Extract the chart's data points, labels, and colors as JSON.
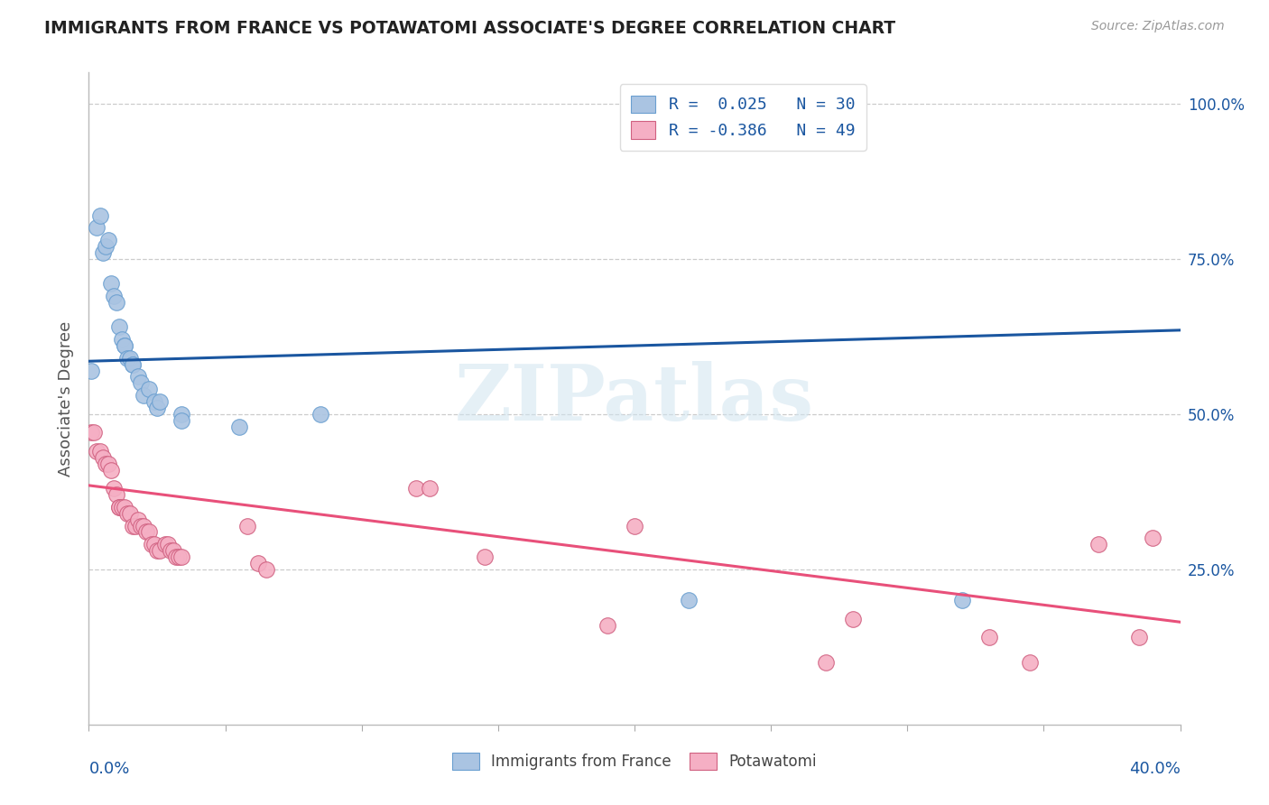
{
  "title": "IMMIGRANTS FROM FRANCE VS POTAWATOMI ASSOCIATE'S DEGREE CORRELATION CHART",
  "source": "Source: ZipAtlas.com",
  "ylabel": "Associate's Degree",
  "legend_label1": "Immigrants from France",
  "legend_label2": "Potawatomi",
  "r1": 0.025,
  "n1": 30,
  "r2": -0.386,
  "n2": 49,
  "blue_color": "#aac4e2",
  "pink_color": "#f5afc4",
  "blue_line_color": "#1a56a0",
  "pink_line_color": "#e8507a",
  "blue_edge_color": "#6a9fd0",
  "pink_edge_color": "#d06080",
  "scatter_blue": {
    "x": [
      0.001,
      0.003,
      0.004,
      0.005,
      0.006,
      0.007,
      0.008,
      0.009,
      0.01,
      0.011,
      0.012,
      0.013,
      0.013,
      0.014,
      0.015,
      0.016,
      0.016,
      0.018,
      0.019,
      0.02,
      0.022,
      0.024,
      0.025,
      0.026,
      0.034,
      0.034,
      0.055,
      0.085,
      0.22,
      0.32
    ],
    "y": [
      0.57,
      0.8,
      0.82,
      0.76,
      0.77,
      0.78,
      0.71,
      0.69,
      0.68,
      0.64,
      0.62,
      0.61,
      0.61,
      0.59,
      0.59,
      0.58,
      0.58,
      0.56,
      0.55,
      0.53,
      0.54,
      0.52,
      0.51,
      0.52,
      0.5,
      0.49,
      0.48,
      0.5,
      0.2,
      0.2
    ]
  },
  "scatter_pink": {
    "x": [
      0.001,
      0.002,
      0.003,
      0.004,
      0.005,
      0.006,
      0.007,
      0.008,
      0.009,
      0.01,
      0.011,
      0.011,
      0.012,
      0.013,
      0.014,
      0.015,
      0.016,
      0.017,
      0.018,
      0.019,
      0.02,
      0.021,
      0.022,
      0.023,
      0.024,
      0.025,
      0.026,
      0.028,
      0.029,
      0.03,
      0.031,
      0.032,
      0.033,
      0.034,
      0.058,
      0.062,
      0.065,
      0.12,
      0.125,
      0.145,
      0.19,
      0.2,
      0.27,
      0.28,
      0.33,
      0.345,
      0.37,
      0.385,
      0.39
    ],
    "y": [
      0.47,
      0.47,
      0.44,
      0.44,
      0.43,
      0.42,
      0.42,
      0.41,
      0.38,
      0.37,
      0.35,
      0.35,
      0.35,
      0.35,
      0.34,
      0.34,
      0.32,
      0.32,
      0.33,
      0.32,
      0.32,
      0.31,
      0.31,
      0.29,
      0.29,
      0.28,
      0.28,
      0.29,
      0.29,
      0.28,
      0.28,
      0.27,
      0.27,
      0.27,
      0.32,
      0.26,
      0.25,
      0.38,
      0.38,
      0.27,
      0.16,
      0.32,
      0.1,
      0.17,
      0.14,
      0.1,
      0.29,
      0.14,
      0.3
    ]
  },
  "xlim": [
    0.0,
    0.4
  ],
  "ylim": [
    0.0,
    1.05
  ],
  "yticks": [
    0.25,
    0.5,
    0.75,
    1.0
  ],
  "ytick_labels": [
    "25.0%",
    "50.0%",
    "75.0%",
    "100.0%"
  ],
  "xtick_left_label": "0.0%",
  "xtick_right_label": "40.0%",
  "watermark": "ZIPatlas",
  "background_color": "#ffffff",
  "grid_color": "#cccccc"
}
